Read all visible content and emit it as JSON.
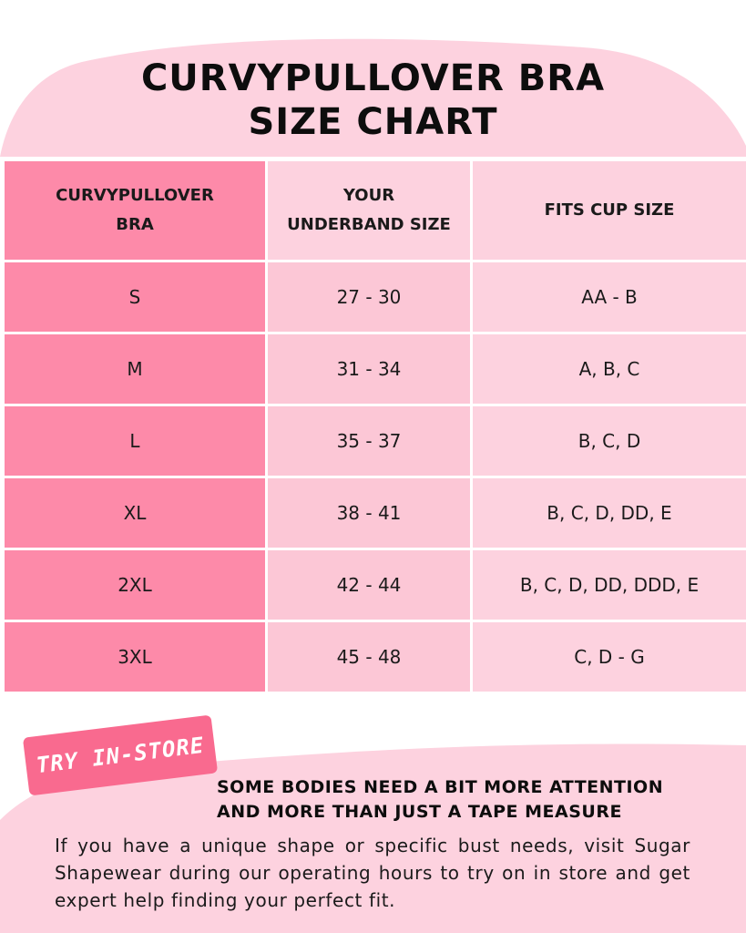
{
  "title": {
    "line1": "CURVYPULLOVER BRA",
    "line2": "SIZE CHART"
  },
  "table": {
    "headers": {
      "col1_line1": "CURVYPULLOVER",
      "col1_line2": "BRA",
      "col2_line1": "YOUR",
      "col2_line2": "UNDERBAND SIZE",
      "col3": "FITS CUP SIZE"
    },
    "rows": [
      {
        "size": "S",
        "underband": "27 - 30",
        "cup": "AA - B"
      },
      {
        "size": "M",
        "underband": "31 - 34",
        "cup": "A, B, C"
      },
      {
        "size": "L",
        "underband": "35 - 37",
        "cup": "B, C, D"
      },
      {
        "size": "XL",
        "underband": "38 - 41",
        "cup": "B, C, D, DD, E"
      },
      {
        "size": "2XL",
        "underband": "42 - 44",
        "cup": "B, C, D, DD, DDD, E"
      },
      {
        "size": "3XL",
        "underband": "45 - 48",
        "cup": "C, D - G"
      }
    ]
  },
  "badge": {
    "label": "TRY IN-STORE"
  },
  "note": {
    "title_line1": "SOME BODIES NEED A BIT MORE ATTENTION",
    "title_line2": "AND MORE THAN JUST A TAPE MEASURE",
    "body": "If you have a unique shape or specific bust needs, visit Sugar Shapewear during our operating hours to try on in store and get expert help finding your perfect fit."
  },
  "colors": {
    "header_pink": "#fdd2df",
    "size_column": "#fd8aa9",
    "underband_column": "#fcc7d6",
    "cup_column": "#fdd2df",
    "badge": "#f96a8f"
  }
}
